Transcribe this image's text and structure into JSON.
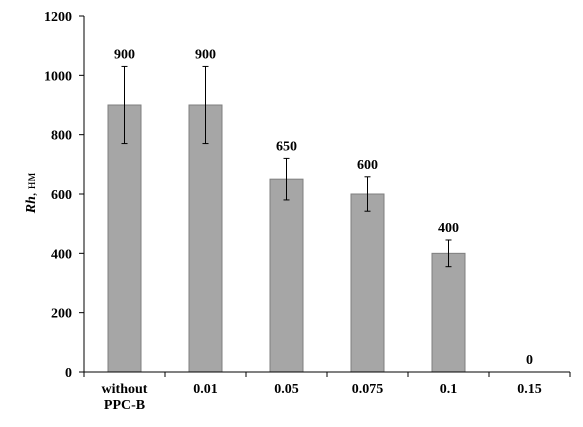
{
  "chart_data": {
    "type": "bar",
    "categories": [
      [
        "without",
        "PPC-B"
      ],
      [
        "0.01"
      ],
      [
        "0.05"
      ],
      [
        "0.075"
      ],
      [
        "0.1"
      ],
      [
        "0.15"
      ]
    ],
    "values": [
      900,
      900,
      650,
      600,
      400,
      0
    ],
    "data_labels": [
      "900",
      "900",
      "650",
      "600",
      "400",
      "0"
    ],
    "error": [
      130,
      130,
      70,
      58,
      45,
      0
    ],
    "ylabel": {
      "symbol": "Rh",
      "unit": ", нм"
    },
    "ylim": [
      0,
      1200
    ],
    "yticks": [
      0,
      200,
      400,
      600,
      800,
      1000,
      1200
    ],
    "ytick_labels": [
      "0",
      "200",
      "400",
      "600",
      "800",
      "1000",
      "1200"
    ],
    "grid": false,
    "bar_color": "#a6a6a6",
    "bar_edge_color": "#7f7f7f"
  }
}
